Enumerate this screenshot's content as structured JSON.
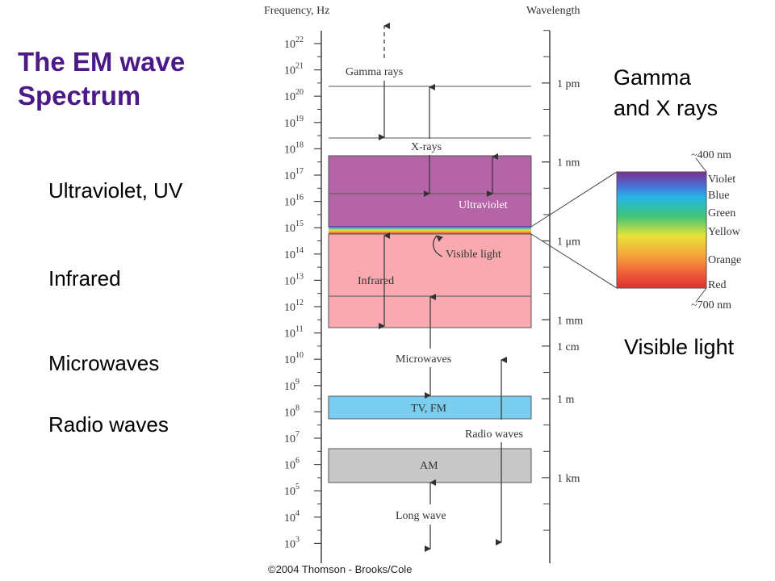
{
  "slide": {
    "title_line1": "The EM wave",
    "title_line2": "Spectrum",
    "left_labels": {
      "uv": "Ultraviolet, UV",
      "infrared": "Infrared",
      "microwaves": "Microwaves",
      "radio": "Radio waves"
    },
    "right_labels": {
      "gamma_line1": "Gamma",
      "gamma_line2": "and X rays",
      "visible": "Visible light"
    },
    "copyright": "©2004 Thomson - Brooks/Cole"
  },
  "diagram": {
    "freq_header": "Frequency, Hz",
    "wave_header": "Wavelength",
    "freq_base": "10",
    "freq_exponents": [
      "22",
      "21",
      "20",
      "19",
      "18",
      "17",
      "16",
      "15",
      "14",
      "13",
      "12",
      "11",
      "10",
      "9",
      "8",
      "7",
      "6",
      "5",
      "4",
      "3"
    ],
    "wavelength_marks": [
      {
        "label": "1 pm",
        "exp": 20.5
      },
      {
        "label": "1 nm",
        "exp": 17.5
      },
      {
        "label": "1 μm",
        "exp": 14.5
      },
      {
        "label": "1 mm",
        "exp": 11.5
      },
      {
        "label": "1 cm",
        "exp": 10.5
      },
      {
        "label": "1 m",
        "exp": 8.5
      },
      {
        "label": "1 km",
        "exp": 5.5
      }
    ],
    "bands": {
      "gamma": "Gamma rays",
      "xrays": "X-rays",
      "ultraviolet": "Ultraviolet",
      "visible": "Visible light",
      "infrared": "Infrared",
      "microwaves": "Microwaves",
      "tvfm": "TV, FM",
      "radio": "Radio waves",
      "am": "AM",
      "longwave": "Long wave"
    },
    "colors": {
      "ultraviolet": "#b564a8",
      "infrared": "#f8aab0",
      "tvfm": "#79cdef",
      "am": "#c8c8c8"
    },
    "visible_inset": {
      "top_label": "~400 nm",
      "bottom_label": "~700 nm",
      "colors": [
        "Violet",
        "Blue",
        "Green",
        "Yellow",
        "Orange",
        "Red"
      ]
    }
  }
}
